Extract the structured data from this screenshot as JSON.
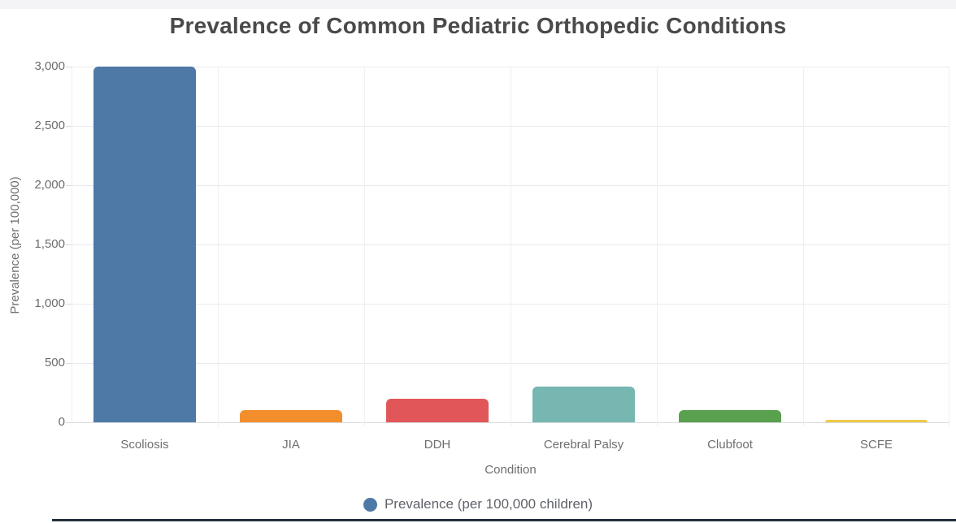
{
  "page": {
    "top_strip_color": "#f4f4f6",
    "bottom_strip_color": "#22303f",
    "background_color": "#ffffff"
  },
  "chart_data": {
    "type": "bar",
    "title": "Prevalence of Common Pediatric Orthopedic Conditions",
    "xlabel": "Condition",
    "ylabel": "Prevalence (per 100,000)",
    "ylim": [
      0,
      3000
    ],
    "yticks": [
      0,
      500,
      1000,
      1500,
      2000,
      2500,
      3000
    ],
    "ytick_labels": [
      "0",
      "500",
      "1,000",
      "1,500",
      "2,000",
      "2,500",
      "3,000"
    ],
    "categories": [
      "Scoliosis",
      "JIA",
      "DDH",
      "Cerebral Palsy",
      "Clubfoot",
      "SCFE"
    ],
    "values": [
      3000,
      100,
      200,
      300,
      100,
      10
    ],
    "bar_colors": [
      "#4e79a7",
      "#f28e2b",
      "#e15759",
      "#76b7b2",
      "#59a14f",
      "#edc949"
    ],
    "grid": true,
    "legend": {
      "position": "bottom",
      "marker_color": "#4e79a7",
      "label": "Prevalence (per 100,000 children)"
    }
  }
}
